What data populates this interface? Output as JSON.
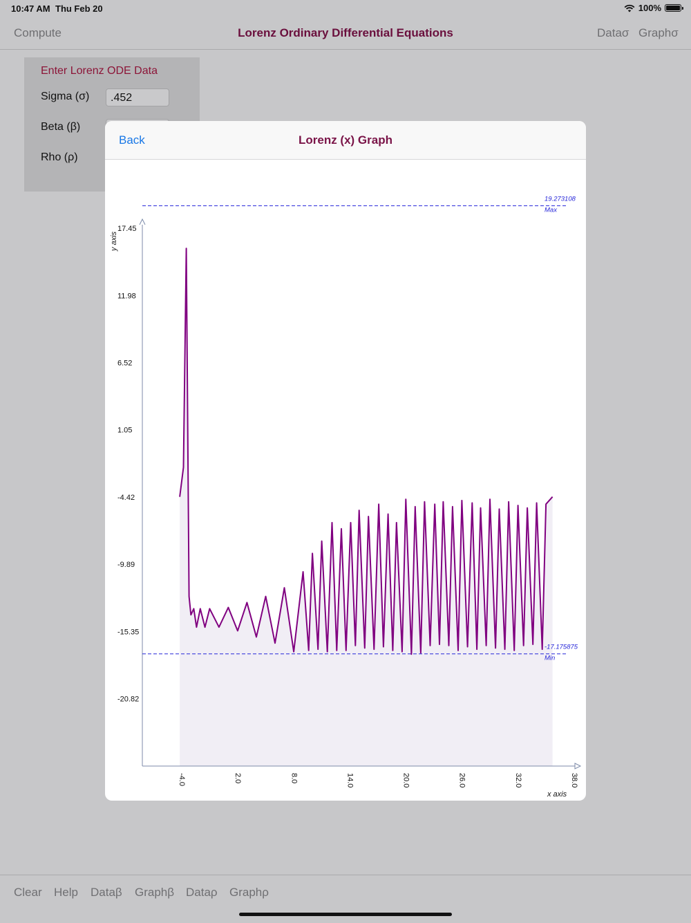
{
  "status": {
    "time": "10:47 AM",
    "date": "Thu Feb 20",
    "battery": "100%"
  },
  "nav": {
    "left": "Compute",
    "title": "Lorenz Ordinary Differential Equations",
    "right1": "Dataσ",
    "right2": "Graphσ"
  },
  "form": {
    "title": "Enter Lorenz ODE Data",
    "sigma_label": "Sigma (σ)",
    "sigma_value": ".452",
    "beta_label": "Beta (β)",
    "rho_label": "Rho (ρ)"
  },
  "toolbar": {
    "clear": "Clear",
    "help": "Help",
    "data_beta": "Dataβ",
    "graph_beta": "Graphβ",
    "data_rho": "Dataρ",
    "graph_rho": "Graphρ"
  },
  "modal": {
    "back": "Back",
    "title": "Lorenz (x) Graph"
  },
  "chart_data": {
    "type": "area",
    "xlabel": "x axis",
    "ylabel": "y axis",
    "x_ticks": [
      -4.0,
      2.0,
      8.0,
      14.0,
      20.0,
      26.0,
      32.0,
      38.0
    ],
    "x_tick_labels": [
      "-4.0",
      "2.0",
      "8.0",
      "14.0",
      "20.0",
      "26.0",
      "32.0",
      "38.0"
    ],
    "xlim": [
      -8,
      38
    ],
    "y_ticks": [
      17.45,
      11.98,
      6.52,
      1.05,
      -4.42,
      -9.89,
      -15.35,
      -20.82
    ],
    "y_tick_labels": [
      "17.45",
      "11.98",
      "6.52",
      "1.05",
      "-4.42",
      "-9.89",
      "-15.35",
      "-20.82"
    ],
    "ylim": [
      -26.3,
      17.9
    ],
    "max_line": {
      "value": 19.273108,
      "label": "19.273108",
      "tag": "Max"
    },
    "min_line": {
      "value": -17.175875,
      "label": "-17.175875",
      "tag": "Min"
    },
    "line_color": "#800080",
    "fill_color": "#f1eef5",
    "ref_line_color": "#2626d9",
    "series": [
      {
        "x": [
          -4.0,
          -3.6,
          -3.3,
          -3.0,
          -2.8,
          -2.5,
          -2.2,
          -1.8,
          -1.3,
          -0.8,
          0.2,
          1.2,
          2.2,
          3.2,
          4.2,
          5.2,
          6.2,
          7.2,
          8.2,
          9.2,
          9.8,
          10.2,
          10.8,
          11.2,
          11.8,
          12.3,
          12.8,
          13.3,
          13.8,
          14.3,
          14.8,
          15.2,
          15.8,
          16.2,
          16.8,
          17.3,
          17.8,
          18.3,
          18.8,
          19.2,
          19.8,
          20.2,
          20.8,
          21.2,
          21.8,
          22.2,
          22.8,
          23.3,
          23.8,
          24.2,
          24.8,
          25.2,
          25.8,
          26.2,
          26.8,
          27.3,
          27.8,
          28.2,
          28.8,
          29.2,
          29.8,
          30.2,
          30.8,
          31.2,
          31.8,
          32.2,
          32.8,
          33.2,
          33.8,
          34.2,
          34.8,
          35.2,
          35.9
        ],
        "y": [
          -4.4,
          -2.0,
          15.8,
          -12.5,
          -14.0,
          -13.5,
          -15.0,
          -13.5,
          -15.0,
          -13.5,
          -15.0,
          -13.4,
          -15.3,
          -13.0,
          -15.8,
          -12.5,
          -16.3,
          -11.8,
          -17.0,
          -10.5,
          -16.9,
          -9.0,
          -16.8,
          -8.0,
          -17.0,
          -6.5,
          -16.9,
          -7.0,
          -16.9,
          -6.5,
          -16.5,
          -5.5,
          -16.7,
          -6.0,
          -16.8,
          -5.0,
          -16.6,
          -5.8,
          -16.9,
          -6.5,
          -17.0,
          -4.6,
          -17.2,
          -5.2,
          -17.1,
          -4.8,
          -16.5,
          -5.0,
          -16.4,
          -4.8,
          -16.5,
          -5.2,
          -16.9,
          -4.7,
          -16.6,
          -4.9,
          -16.8,
          -5.3,
          -16.5,
          -4.6,
          -16.7,
          -5.4,
          -16.8,
          -4.8,
          -16.9,
          -5.1,
          -16.5,
          -5.3,
          -16.4,
          -4.9,
          -16.8,
          -5.0,
          -4.4
        ]
      }
    ]
  }
}
